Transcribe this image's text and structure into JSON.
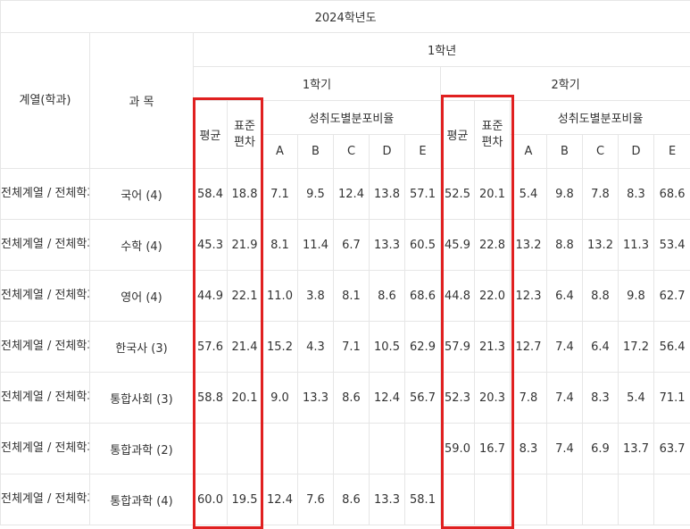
{
  "table": {
    "title": "2024학년도",
    "year": "1학년",
    "col_track": "계열(학과)",
    "col_subject": "과 목",
    "semesters": [
      "1학기",
      "2학기"
    ],
    "avg": "평균",
    "std_line1": "표준",
    "std_line2": "편차",
    "dist": "성취도별분포비율",
    "grades": [
      "A",
      "B",
      "C",
      "D",
      "E"
    ],
    "rows": [
      {
        "track": "전체계열 / 전체학과",
        "subject": "국어 (4)",
        "s1": {
          "avg": "58.4",
          "std": "18.8",
          "dist": [
            "7.1",
            "9.5",
            "12.4",
            "13.8",
            "57.1"
          ]
        },
        "s2": {
          "avg": "52.5",
          "std": "20.1",
          "dist": [
            "5.4",
            "9.8",
            "7.8",
            "8.3",
            "68.6"
          ]
        }
      },
      {
        "track": "전체계열 / 전체학과",
        "subject": "수학 (4)",
        "s1": {
          "avg": "45.3",
          "std": "21.9",
          "dist": [
            "8.1",
            "11.4",
            "6.7",
            "13.3",
            "60.5"
          ]
        },
        "s2": {
          "avg": "45.9",
          "std": "22.8",
          "dist": [
            "13.2",
            "8.8",
            "13.2",
            "11.3",
            "53.4"
          ]
        }
      },
      {
        "track": "전체계열 / 전체학과",
        "subject": "영어 (4)",
        "s1": {
          "avg": "44.9",
          "std": "22.1",
          "dist": [
            "11.0",
            "3.8",
            "8.1",
            "8.6",
            "68.6"
          ]
        },
        "s2": {
          "avg": "44.8",
          "std": "22.0",
          "dist": [
            "12.3",
            "6.4",
            "8.8",
            "9.8",
            "62.7"
          ]
        }
      },
      {
        "track": "전체계열 / 전체학과",
        "subject": "한국사 (3)",
        "s1": {
          "avg": "57.6",
          "std": "21.4",
          "dist": [
            "15.2",
            "4.3",
            "7.1",
            "10.5",
            "62.9"
          ]
        },
        "s2": {
          "avg": "57.9",
          "std": "21.3",
          "dist": [
            "12.7",
            "7.4",
            "6.4",
            "17.2",
            "56.4"
          ]
        }
      },
      {
        "track": "전체계열 / 전체학과",
        "subject": "통합사회 (3)",
        "s1": {
          "avg": "58.8",
          "std": "20.1",
          "dist": [
            "9.0",
            "13.3",
            "8.6",
            "12.4",
            "56.7"
          ]
        },
        "s2": {
          "avg": "52.3",
          "std": "20.3",
          "dist": [
            "7.8",
            "7.4",
            "8.3",
            "5.4",
            "71.1"
          ]
        }
      },
      {
        "track": "전체계열 / 전체학과",
        "subject": "통합과학 (2)",
        "s1": {
          "avg": "",
          "std": "",
          "dist": [
            "",
            "",
            "",
            "",
            ""
          ]
        },
        "s2": {
          "avg": "59.0",
          "std": "16.7",
          "dist": [
            "8.3",
            "7.4",
            "6.9",
            "13.7",
            "63.7"
          ]
        }
      },
      {
        "track": "전체계열 / 전체학과",
        "subject": "통합과학 (4)",
        "s1": {
          "avg": "60.0",
          "std": "19.5",
          "dist": [
            "12.4",
            "7.6",
            "8.6",
            "13.3",
            "58.1"
          ]
        },
        "s2": {
          "avg": "",
          "std": "",
          "dist": [
            "",
            "",
            "",
            "",
            ""
          ]
        }
      }
    ]
  },
  "highlight_color": "#e02020",
  "border_color": "#e6e6e6"
}
